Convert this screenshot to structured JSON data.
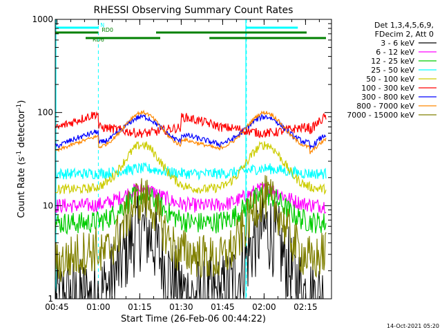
{
  "chart_data": {
    "type": "line",
    "title": "RHESSI Observing Summary Count Rates",
    "xlabel": "Start Time (26-Feb-06 00:44:22)",
    "ylabel_main": "Count Rate (s",
    "ylabel_sup1": "-1",
    "ylabel_mid": " detector",
    "ylabel_sup2": "-1",
    "ylabel_end": ")",
    "y_scale": "log",
    "ylim": [
      1,
      1000
    ],
    "xlim_minutes": [
      0,
      100
    ],
    "x_ticks": [
      {
        "label": "00:45",
        "t": 0.6
      },
      {
        "label": "01:00",
        "t": 15.6
      },
      {
        "label": "01:15",
        "t": 30.6
      },
      {
        "label": "01:30",
        "t": 45.6
      },
      {
        "label": "01:45",
        "t": 60.6
      },
      {
        "label": "02:00",
        "t": 75.6
      },
      {
        "label": "02:15",
        "t": 90.6
      }
    ],
    "y_ticks": [
      {
        "label": "1",
        "v": 1
      },
      {
        "label": "10",
        "v": 10
      },
      {
        "label": "100",
        "v": 100
      },
      {
        "label": "1000",
        "v": 1000
      }
    ],
    "legend_header": [
      "Det 1,3,4,5,6,9,",
      "FDecim 2, Att 0"
    ],
    "legend_placement": "right",
    "series": [
      {
        "name": "3 - 6 keV",
        "color": "#000000",
        "baseline": 1.0,
        "peak": 5.5,
        "noise": 0.45
      },
      {
        "name": "6 - 12 keV",
        "color": "#ff00ff",
        "baseline": 10,
        "peak": 15,
        "noise": 0.08
      },
      {
        "name": "12 - 25 keV",
        "color": "#00cc00",
        "baseline": 6.5,
        "peak": 13,
        "noise": 0.12
      },
      {
        "name": "25 - 50 keV",
        "color": "#00ffff",
        "baseline": 22,
        "peak": 25,
        "noise": 0.06
      },
      {
        "name": "50 - 100 keV",
        "color": "#cccc00",
        "baseline": 15,
        "peak": 45,
        "noise": 0.05
      },
      {
        "name": "100 - 300 keV",
        "color": "#ff0000",
        "baseline": 70,
        "peak": 60,
        "noise": 0.05
      },
      {
        "name": "300 - 800 keV",
        "color": "#0000ff",
        "baseline": 45,
        "peak": 90,
        "noise": 0.03
      },
      {
        "name": "800 - 7000 keV",
        "color": "#ff8800",
        "baseline": 40,
        "peak": 100,
        "noise": 0.02
      },
      {
        "name": "7000 - 15000 keV",
        "color": "#808000",
        "baseline": 2.5,
        "peak": 12,
        "noise": 0.25
      }
    ],
    "saa_boundaries_minutes": [
      15.6,
      69.2
    ],
    "night_boundaries_minutes": [
      0.0,
      69.0
    ],
    "flags": [
      {
        "label": "N",
        "color": "#00ffff",
        "segments": [
          [
            0,
            15.6
          ],
          [
            69.2,
            87.8
          ]
        ]
      },
      {
        "label": "RD0",
        "color": "#008000",
        "segments": [
          [
            0,
            15.6
          ],
          [
            36.5,
            91.0
          ]
        ]
      },
      {
        "label": "RD6",
        "color": "#008000",
        "segments": [
          [
            11.0,
            38.0
          ],
          [
            55.8,
            98.0
          ]
        ]
      }
    ],
    "timestamp": "14-Oct-2021 05:20"
  }
}
